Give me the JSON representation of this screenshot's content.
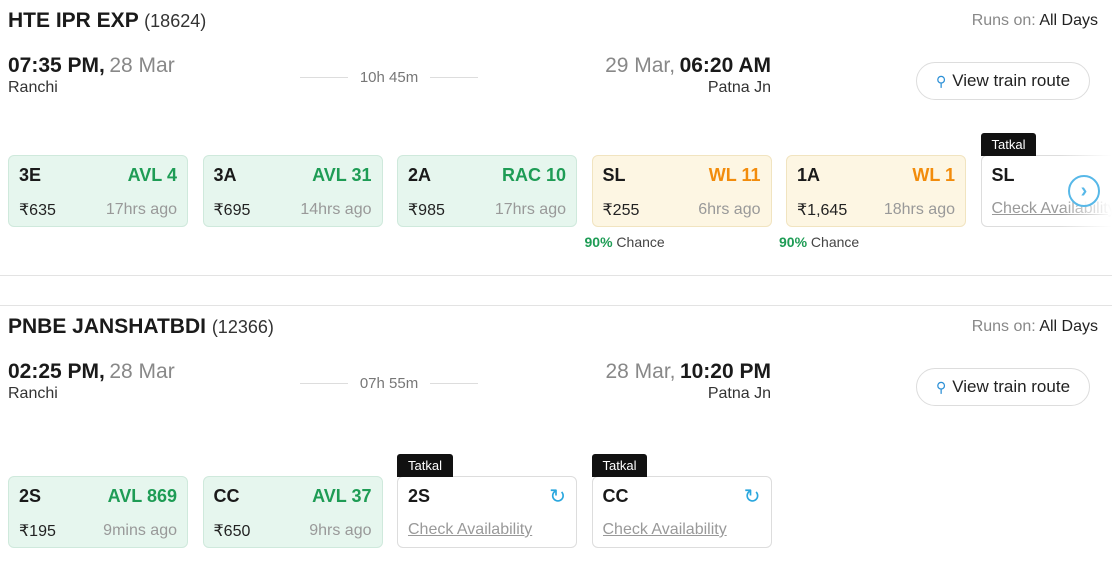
{
  "trains": [
    {
      "name": "HTE IPR EXP",
      "number": "(18624)",
      "runs_label": "Runs on:",
      "runs_value": "All Days",
      "dep_time": "07:35 PM,",
      "dep_date": "28 Mar",
      "dep_station": "Ranchi",
      "duration": "10h 45m",
      "arr_date": "29 Mar,",
      "arr_time": "06:20 AM",
      "arr_station": "Patna Jn",
      "route_label": "View train route",
      "classes": [
        {
          "code": "3E",
          "status": "AVL 4",
          "fare": "₹635",
          "updated": "17hrs ago",
          "type": "avl"
        },
        {
          "code": "3A",
          "status": "AVL 31",
          "fare": "₹695",
          "updated": "14hrs ago",
          "type": "avl"
        },
        {
          "code": "2A",
          "status": "RAC 10",
          "fare": "₹985",
          "updated": "17hrs ago",
          "type": "avl"
        },
        {
          "code": "SL",
          "status": "WL 11",
          "fare": "₹255",
          "updated": "6hrs ago",
          "type": "wl",
          "chance_pct": "90%",
          "chance_label": "Chance"
        },
        {
          "code": "1A",
          "status": "WL 1",
          "fare": "₹1,645",
          "updated": "18hrs ago",
          "type": "wl",
          "chance_pct": "90%",
          "chance_label": "Chance"
        },
        {
          "code": "SL",
          "tag": "Tatkal",
          "check": "Check Availability",
          "type": "tatkal"
        }
      ]
    },
    {
      "name": "PNBE JANSHATBDI",
      "number": "(12366)",
      "runs_label": "Runs on:",
      "runs_value": "All Days",
      "dep_time": "02:25 PM,",
      "dep_date": "28 Mar",
      "dep_station": "Ranchi",
      "duration": "07h 55m",
      "arr_date": "28 Mar,",
      "arr_time": "10:20 PM",
      "arr_station": "Patna Jn",
      "route_label": "View train route",
      "classes": [
        {
          "code": "2S",
          "status": "AVL 869",
          "fare": "₹195",
          "updated": "9mins ago",
          "type": "avl"
        },
        {
          "code": "CC",
          "status": "AVL 37",
          "fare": "₹650",
          "updated": "9hrs ago",
          "type": "avl"
        },
        {
          "code": "2S",
          "tag": "Tatkal",
          "check": "Check Availability",
          "type": "tatkal"
        },
        {
          "code": "CC",
          "tag": "Tatkal",
          "check": "Check Availability",
          "type": "tatkal"
        }
      ]
    }
  ],
  "colors": {
    "available": "#1e9c55",
    "waitlist": "#f28c0c",
    "accent": "#2aa7de"
  }
}
